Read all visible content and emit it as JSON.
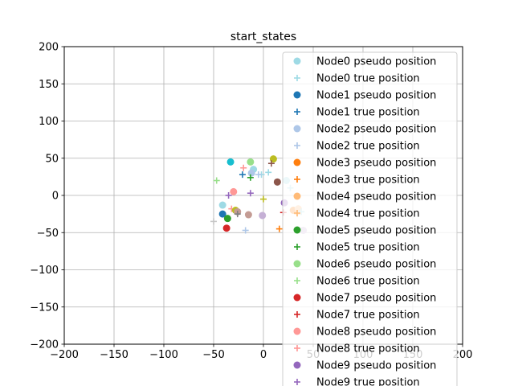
{
  "chart_data": {
    "type": "scatter",
    "title": "start_states",
    "xlabel": "",
    "ylabel": "",
    "xlim": [
      -200,
      200
    ],
    "ylim": [
      -200,
      200
    ],
    "xticks": [
      -200,
      -150,
      -100,
      -50,
      0,
      50,
      100,
      150,
      200
    ],
    "yticks": [
      -200,
      -150,
      -100,
      -50,
      0,
      50,
      100,
      150,
      200
    ],
    "grid": true,
    "legend_position": "upper-right",
    "series": [
      {
        "name": "Node0 pseudo position",
        "marker": "circle",
        "color": "#9edae5",
        "points": [
          [
            -41,
            -13
          ],
          [
            -10,
            35
          ],
          [
            23,
            20
          ]
        ]
      },
      {
        "name": "Node0 true position",
        "marker": "plus",
        "color": "#9edae5",
        "points": [
          [
            -2,
            28
          ],
          [
            5,
            31
          ],
          [
            27,
            10
          ]
        ]
      },
      {
        "name": "Node1 pseudo position",
        "marker": "circle",
        "color": "#1f77b4",
        "points": [
          [
            -41,
            -25
          ]
        ]
      },
      {
        "name": "Node1 true position",
        "marker": "plus",
        "color": "#1f77b4",
        "points": [
          [
            -21,
            28
          ]
        ]
      },
      {
        "name": "Node2 pseudo position",
        "marker": "circle",
        "color": "#aec7e8",
        "points": [
          [
            -12,
            30
          ]
        ]
      },
      {
        "name": "Node2 true position",
        "marker": "plus",
        "color": "#aec7e8",
        "points": [
          [
            -18,
            -47
          ],
          [
            -5,
            28
          ]
        ]
      },
      {
        "name": "Node3 pseudo position",
        "marker": "circle",
        "color": "#ff7f0e",
        "points": [
          [
            30,
            -20
          ]
        ]
      },
      {
        "name": "Node3 true position",
        "marker": "plus",
        "color": "#ff7f0e",
        "points": [
          [
            16,
            -45
          ]
        ]
      },
      {
        "name": "Node4 pseudo position",
        "marker": "circle",
        "color": "#ffbb78",
        "points": [
          [
            35,
            -18
          ]
        ]
      },
      {
        "name": "Node4 true position",
        "marker": "plus",
        "color": "#ffbb78",
        "points": [
          [
            34,
            -25
          ]
        ]
      },
      {
        "name": "Node5 pseudo position",
        "marker": "circle",
        "color": "#2ca02c",
        "points": [
          [
            -36,
            -31
          ]
        ]
      },
      {
        "name": "Node5 true position",
        "marker": "plus",
        "color": "#2ca02c",
        "points": [
          [
            -13,
            24
          ]
        ]
      },
      {
        "name": "Node6 pseudo position",
        "marker": "circle",
        "color": "#98df8a",
        "points": [
          [
            -13,
            45
          ]
        ]
      },
      {
        "name": "Node6 true position",
        "marker": "plus",
        "color": "#98df8a",
        "points": [
          [
            -47,
            20
          ]
        ]
      },
      {
        "name": "Node7 pseudo position",
        "marker": "circle",
        "color": "#d62728",
        "points": [
          [
            -37,
            -44
          ]
        ]
      },
      {
        "name": "Node7 true position",
        "marker": "plus",
        "color": "#d62728",
        "points": [
          [
            20,
            -23
          ]
        ]
      },
      {
        "name": "Node8 pseudo position",
        "marker": "circle",
        "color": "#ff9896",
        "points": [
          [
            -30,
            5
          ]
        ]
      },
      {
        "name": "Node8 true position",
        "marker": "plus",
        "color": "#ff9896",
        "points": [
          [
            -20,
            37
          ],
          [
            -32,
            -18
          ]
        ]
      },
      {
        "name": "Node9 pseudo position",
        "marker": "circle",
        "color": "#9467bd",
        "points": [
          [
            21,
            -10
          ]
        ]
      },
      {
        "name": "Node9 true position",
        "marker": "plus",
        "color": "#9467bd",
        "points": [
          [
            -35,
            0
          ]
        ]
      }
    ],
    "extra_points": [
      {
        "marker": "circle",
        "color": "#17becf",
        "points": [
          [
            -33,
            45
          ]
        ]
      },
      {
        "marker": "circle",
        "color": "#8c564b",
        "points": [
          [
            14,
            18
          ]
        ]
      },
      {
        "marker": "circle",
        "color": "#bcbd22",
        "points": [
          [
            -28,
            -20
          ],
          [
            10,
            49
          ]
        ]
      },
      {
        "marker": "circle",
        "color": "#c49c94",
        "points": [
          [
            -15,
            -26
          ],
          [
            -26,
            -22
          ]
        ]
      },
      {
        "marker": "circle",
        "color": "#c5b0d5",
        "points": [
          [
            -1,
            -27
          ],
          [
            40,
            -47
          ]
        ]
      },
      {
        "marker": "plus",
        "color": "#bcbd22",
        "points": [
          [
            0,
            -5
          ]
        ]
      },
      {
        "marker": "plus",
        "color": "#8c564b",
        "points": [
          [
            8,
            43
          ]
        ]
      },
      {
        "marker": "plus",
        "color": "#9467bd",
        "points": [
          [
            -13,
            3
          ]
        ]
      },
      {
        "marker": "plus",
        "color": "#c7c7c7",
        "points": [
          [
            -50,
            -35
          ]
        ]
      },
      {
        "marker": "plus",
        "color": "#7f7f7f",
        "points": [
          [
            -26,
            -25
          ]
        ]
      },
      {
        "marker": "plus",
        "color": "#9edae5",
        "points": [
          [
            38,
            -22
          ]
        ]
      }
    ]
  }
}
